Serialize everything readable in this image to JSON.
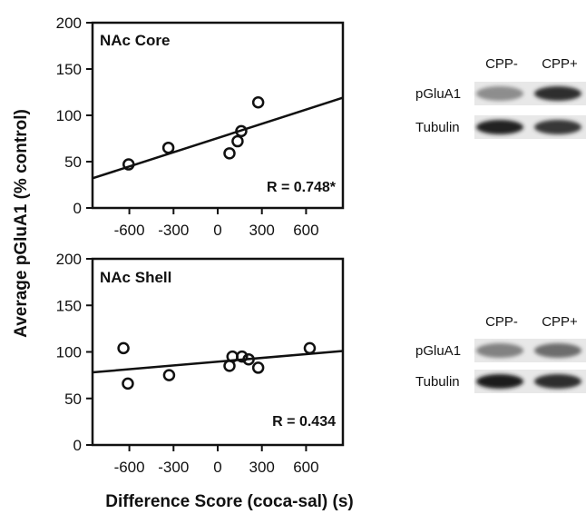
{
  "figure": {
    "ylabel": "Average pGluA1 (% control)",
    "xlabel": "Difference Score (coca-sal) (s)"
  },
  "chart_data": [
    {
      "type": "scatter",
      "title": "NAc Core",
      "annotation": "R = 0.748*",
      "xlim": [
        -850,
        850
      ],
      "ylim": [
        0,
        200
      ],
      "xticks": [
        "-600",
        "-300",
        "0",
        "300",
        "600"
      ],
      "xtick_values": [
        -600,
        -300,
        0,
        300,
        600
      ],
      "yticks": [
        "0",
        "50",
        "100",
        "150",
        "200"
      ],
      "ytick_values": [
        0,
        50,
        100,
        150,
        200
      ],
      "points": [
        {
          "x": -605,
          "y": 47
        },
        {
          "x": -335,
          "y": 65
        },
        {
          "x": 80,
          "y": 59
        },
        {
          "x": 135,
          "y": 72
        },
        {
          "x": 160,
          "y": 83
        },
        {
          "x": 275,
          "y": 114
        }
      ],
      "fit_line": {
        "x": [
          -850,
          850
        ],
        "y": [
          32,
          119
        ]
      },
      "grid": false,
      "marker": "open-circle"
    },
    {
      "type": "scatter",
      "title": "NAc Shell",
      "annotation": "R = 0.434",
      "xlim": [
        -850,
        850
      ],
      "ylim": [
        0,
        200
      ],
      "xticks": [
        "-600",
        "-300",
        "0",
        "300",
        "600"
      ],
      "xtick_values": [
        -600,
        -300,
        0,
        300,
        600
      ],
      "yticks": [
        "0",
        "50",
        "100",
        "150",
        "200"
      ],
      "ytick_values": [
        0,
        50,
        100,
        150,
        200
      ],
      "points": [
        {
          "x": -640,
          "y": 104
        },
        {
          "x": -610,
          "y": 66
        },
        {
          "x": -330,
          "y": 75
        },
        {
          "x": 80,
          "y": 85
        },
        {
          "x": 100,
          "y": 95
        },
        {
          "x": 165,
          "y": 95
        },
        {
          "x": 210,
          "y": 92
        },
        {
          "x": 275,
          "y": 83
        },
        {
          "x": 625,
          "y": 104
        }
      ],
      "fit_line": {
        "x": [
          -850,
          850
        ],
        "y": [
          78,
          101
        ]
      },
      "grid": false,
      "marker": "open-circle"
    }
  ],
  "blots": [
    {
      "columns": [
        "CPP-",
        "CPP+"
      ],
      "rows": [
        {
          "label": "pGluA1",
          "intensities": [
            0.45,
            0.9
          ]
        },
        {
          "label": "Tubulin",
          "intensities": [
            0.95,
            0.85
          ]
        }
      ]
    },
    {
      "columns": [
        "CPP-",
        "CPP+"
      ],
      "rows": [
        {
          "label": "pGluA1",
          "intensities": [
            0.5,
            0.6
          ]
        },
        {
          "label": "Tubulin",
          "intensities": [
            0.97,
            0.9
          ]
        }
      ]
    }
  ]
}
